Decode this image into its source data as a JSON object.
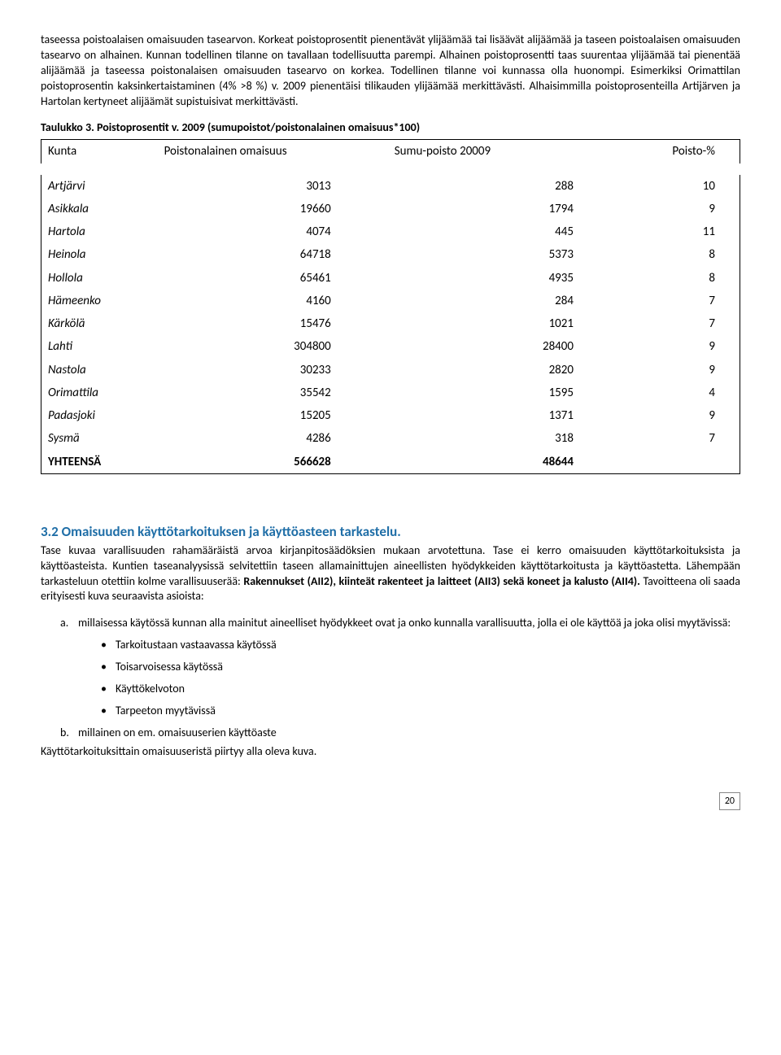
{
  "paragraph1": "taseessa poistoalaisen omaisuuden tasearvon. Korkeat poistoprosentit pienentävät ylijäämää tai lisäävät alijäämää ja taseen poistoalaisen omaisuuden tasearvo on alhainen. Kunnan todellinen tilanne on tavallaan todellisuutta parempi. Alhainen poistoprosentti taas suurentaa ylijäämää tai pienentää alijäämää ja taseessa poistonalaisen omaisuuden tasearvo on korkea. Todellinen tilanne voi kunnassa olla huonompi. Esimerkiksi Orimattilan poistoprosentin kaksinkertaistaminen (4% >8 %) v. 2009 pienentäisi tilikauden ylijäämää merkittävästi. Alhaisimmilla poistoprosenteilla Artijärven ja Hartolan kertyneet alijäämät supistuisivat merkittävästi.",
  "table": {
    "caption": "Taulukko 3. Poistoprosentit v. 2009 (sumupoistot/poistonalainen omaisuus*100)",
    "headers": [
      "Kunta",
      "Poistonalainen omaisuus",
      "Sumu-poisto 20009",
      "Poisto-%"
    ],
    "rows": [
      [
        "Artjärvi",
        "3013",
        "288",
        "10"
      ],
      [
        "Asikkala",
        "19660",
        "1794",
        "9"
      ],
      [
        "Hartola",
        "4074",
        "445",
        "11"
      ],
      [
        "Heinola",
        "64718",
        "5373",
        "8"
      ],
      [
        "Hollola",
        "65461",
        "4935",
        "8"
      ],
      [
        "Hämeenko",
        "4160",
        "284",
        "7"
      ],
      [
        "Kärkölä",
        "15476",
        "1021",
        "7"
      ],
      [
        "Lahti",
        "304800",
        "28400",
        "9"
      ],
      [
        "Nastola",
        "30233",
        "2820",
        "9"
      ],
      [
        "Orimattila",
        "35542",
        "1595",
        "4"
      ],
      [
        "Padasjoki",
        "15205",
        "1371",
        "9"
      ],
      [
        "Sysmä",
        "4286",
        "318",
        "7"
      ]
    ],
    "total": [
      "YHTEENSÄ",
      "566628",
      "48644",
      ""
    ]
  },
  "section": {
    "heading": "3.2 Omaisuuden käyttötarkoituksen ja käyttöasteen tarkastelu.",
    "intro_part1": "Tase kuvaa varallisuuden rahamääräistä arvoa kirjanpitosäädöksien mukaan arvotettuna. Tase ei kerro omaisuuden käyttötarkoituksista ja käyttöasteista. Kuntien taseanalyysissä selvitettiin taseen allamainittujen aineellisten hyödykkeiden käyttötarkoitusta ja käyttöastetta.  Lähempään tarkasteluun otettiin kolme varallisuuserää: ",
    "intro_bold": "Rakennukset (AII2), kiinteät rakenteet ja laitteet (AII3) sekä koneet ja kalusto (AII4).",
    "intro_part2": " Tavoitteena oli saada erityisesti kuva seuraavista asioista:",
    "item_a": "millaisessa käytössä kunnan alla mainitut aineelliset hyödykkeet ovat ja onko kunnalla varallisuutta, jolla ei ole käyttöä ja joka olisi myytävissä:",
    "bullets": [
      "Tarkoitustaan vastaavassa käytössä",
      "Toisarvoisessa käytössä",
      "Käyttökelvoton",
      "Tarpeeton myytävissä"
    ],
    "item_b": "millainen on em. omaisuuserien käyttöaste",
    "closing": "Käyttötarkoituksittain omaisuuseristä piirtyy alla oleva kuva."
  },
  "page_number": "20"
}
